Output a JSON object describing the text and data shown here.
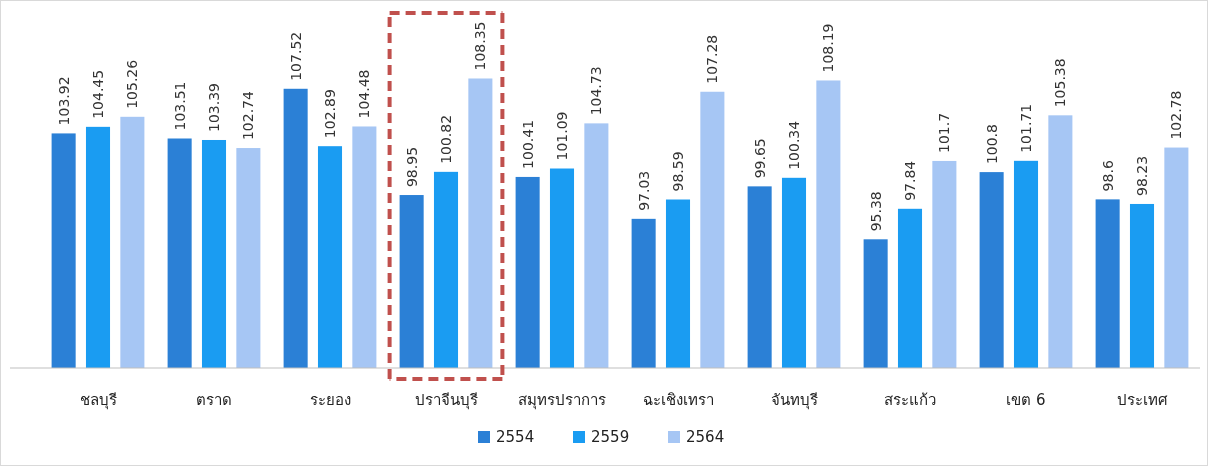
{
  "chart_data": {
    "type": "bar",
    "categories": [
      "ชลบุรี",
      "ตราด",
      "ระยอง",
      "ปราจีนบุรี",
      "สมุทรปราการ",
      "ฉะเชิงเทรา",
      "จันทบุรี",
      "สระแก้ว",
      "เขต 6",
      "ประเทศ"
    ],
    "series": [
      {
        "name": "2554",
        "color": "#2b80d6",
        "values": [
          103.92,
          103.51,
          107.52,
          98.95,
          100.41,
          97.03,
          99.65,
          95.38,
          100.8,
          98.6
        ]
      },
      {
        "name": "2559",
        "color": "#1a9cf2",
        "values": [
          104.45,
          103.39,
          102.89,
          100.82,
          101.09,
          98.59,
          100.34,
          97.84,
          101.71,
          98.23
        ]
      },
      {
        "name": "2564",
        "color": "#a6c6f4",
        "values": [
          105.26,
          102.74,
          104.48,
          108.35,
          104.73,
          107.28,
          108.19,
          101.7,
          105.38,
          102.78
        ]
      }
    ],
    "ylim": [
      85,
      114.6
    ],
    "data_labels": true,
    "tick_labels": "x",
    "legend": "bottom"
  }
}
